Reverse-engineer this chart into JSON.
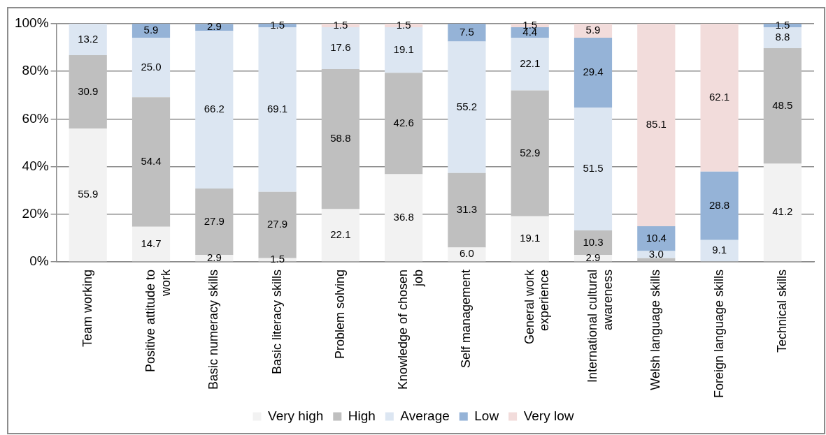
{
  "chart_data": {
    "type": "bar",
    "stacked": true,
    "categories": [
      "Team working",
      "Positive attitude to work",
      "Basic numeracy skills",
      "Basic literacy skills",
      "Problem solving",
      "Knowledge of chosen job",
      "Self management",
      "General work experience",
      "International cultural awareness",
      "Welsh language skills",
      "Foreign language skills",
      "Technical skills"
    ],
    "series": [
      {
        "name": "Very high",
        "color": "#f2f2f2",
        "values": [
          55.9,
          14.7,
          2.9,
          1.5,
          22.1,
          36.8,
          6.0,
          19.1,
          2.9,
          null,
          null,
          41.2
        ],
        "value_labels": [
          "55.9",
          "14.7",
          "2.9",
          "1.5",
          "22.1",
          "36.8",
          "6.0",
          "19.1",
          "2.9",
          null,
          null,
          "41.2"
        ]
      },
      {
        "name": "High",
        "color": "#bfbfbf",
        "values": [
          30.9,
          54.4,
          27.9,
          27.9,
          58.8,
          42.6,
          31.3,
          52.9,
          10.3,
          1.5,
          null,
          48.5
        ],
        "value_labels": [
          "30.9",
          "54.4",
          "27.9",
          "27.9",
          "58.8",
          "42.6",
          "31.3",
          "52.9",
          "10.3",
          null,
          null,
          "48.5"
        ]
      },
      {
        "name": "Average",
        "color": "#dce6f2",
        "values": [
          13.2,
          25.0,
          66.2,
          69.1,
          17.6,
          19.1,
          55.2,
          22.1,
          51.5,
          3.0,
          9.1,
          8.8
        ],
        "value_labels": [
          "13.2",
          "25.0",
          "66.2",
          "69.1",
          "17.6",
          "19.1",
          "55.2",
          "22.1",
          "51.5",
          "3.0",
          "9.1",
          "8.8"
        ]
      },
      {
        "name": "Low",
        "color": "#95b3d7",
        "values": [
          null,
          5.9,
          2.9,
          1.5,
          null,
          null,
          7.5,
          4.4,
          29.4,
          10.4,
          28.8,
          1.5
        ],
        "value_labels": [
          null,
          "5.9",
          "2.9",
          "1.5",
          null,
          null,
          "7.5",
          "4.4",
          "29.4",
          "10.4",
          "28.8",
          "1.5"
        ]
      },
      {
        "name": "Very low",
        "color": "#f2dcdb",
        "values": [
          null,
          null,
          null,
          null,
          1.5,
          1.5,
          null,
          1.5,
          5.9,
          85.1,
          62.1,
          null
        ],
        "value_labels": [
          null,
          null,
          null,
          null,
          "1.5",
          "1.5",
          null,
          "1.5",
          "5.9",
          "85.1",
          "62.1",
          null
        ]
      }
    ],
    "ylim": [
      0,
      100
    ],
    "yticks": [
      {
        "value": 0,
        "label": "0%"
      },
      {
        "value": 20,
        "label": "20%"
      },
      {
        "value": 40,
        "label": "40%"
      },
      {
        "value": 60,
        "label": "60%"
      },
      {
        "value": 80,
        "label": "80%"
      },
      {
        "value": 100,
        "label": "100%"
      }
    ],
    "grid": "y",
    "legend": "bottom"
  }
}
